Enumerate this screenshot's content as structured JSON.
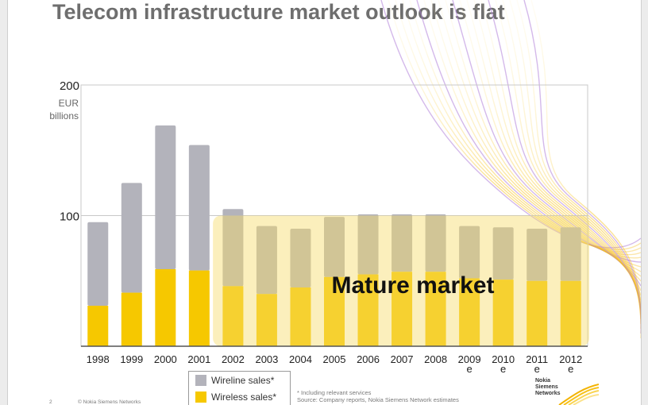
{
  "slide": {
    "title": "Telecom infrastructure market outlook is flat",
    "unit_label_1": "EUR",
    "unit_label_2": "billions",
    "overlay_label": "Mature market",
    "footnote_1": "* Including relevant services",
    "footnote_2": "Source: Company reports, Nokia Siemens Network estimates",
    "copyright": "© Nokia Siemens Networks",
    "page_number": "2",
    "logo_text": "Nokia Siemens Networks"
  },
  "legend": {
    "wireline": "Wireline sales*",
    "wireless": "Wireless sales*"
  },
  "colors": {
    "wireline": "#b3b3bb",
    "wireless": "#f6c800",
    "overlay": "#f7dc6a",
    "grid": "#c8c8c8"
  },
  "chart_data": {
    "type": "bar",
    "stacked": true,
    "categories": [
      "1998",
      "1999",
      "2000",
      "2001",
      "2002",
      "2003",
      "2004",
      "2005",
      "2006",
      "2007",
      "2008",
      "2009 e",
      "2010 e",
      "2011 e",
      "2012 e"
    ],
    "category_lines": [
      [
        "1998"
      ],
      [
        "1999"
      ],
      [
        "2000"
      ],
      [
        "2001"
      ],
      [
        "2002"
      ],
      [
        "2003"
      ],
      [
        "2004"
      ],
      [
        "2005"
      ],
      [
        "2006"
      ],
      [
        "2007"
      ],
      [
        "2008"
      ],
      [
        "2009",
        "e"
      ],
      [
        "2010",
        "e"
      ],
      [
        "2011",
        "e"
      ],
      [
        "2012",
        "e"
      ]
    ],
    "series": [
      {
        "name": "Wireless sales*",
        "values": [
          31,
          41,
          59,
          58,
          46,
          40,
          45,
          53,
          55,
          57,
          57,
          52,
          51,
          50,
          50
        ]
      },
      {
        "name": "Wireline sales*",
        "values": [
          64,
          84,
          110,
          96,
          59,
          52,
          45,
          46,
          46,
          44,
          44,
          40,
          40,
          40,
          41
        ]
      }
    ],
    "ylim": [
      0,
      200
    ],
    "yticks": [
      100,
      200
    ],
    "ylabel": "EUR billions",
    "grid": true,
    "legend_position": "bottom"
  }
}
